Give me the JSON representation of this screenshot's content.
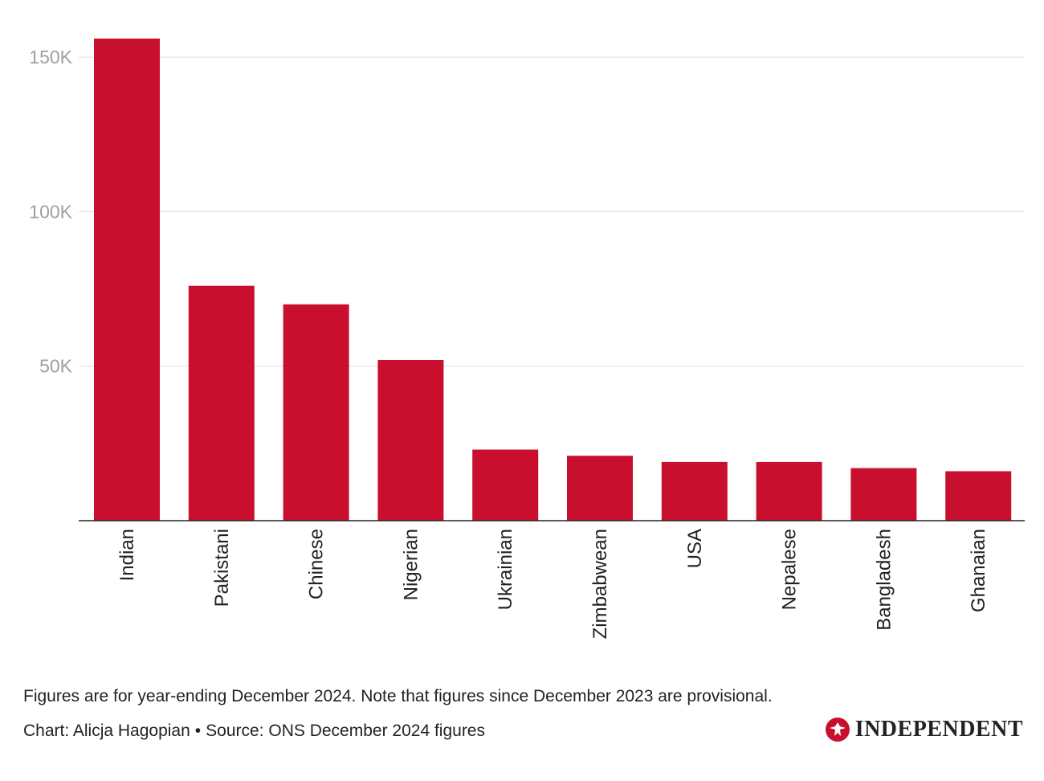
{
  "chart_data": {
    "type": "bar",
    "categories": [
      "Indian",
      "Pakistani",
      "Chinese",
      "Nigerian",
      "Ukrainian",
      "Zimbabwean",
      "USA",
      "Nepalese",
      "Bangladesh",
      "Ghanaian"
    ],
    "values": [
      156000,
      76000,
      70000,
      52000,
      23000,
      21000,
      19000,
      19000,
      17000,
      16000
    ],
    "yticks": [
      50000,
      100000,
      150000
    ],
    "ytick_labels": [
      "50K",
      "100K",
      "150K"
    ],
    "ylim": [
      0,
      156000
    ],
    "grid": true,
    "bar_color": "#c8102e"
  },
  "footer": {
    "note": "Figures are for year-ending December 2024. Note that figures since December 2023 are provisional.",
    "credit": "Chart: Alicja Hagopian",
    "separator": "•",
    "source": "Source: ONS December 2024 figures"
  },
  "logo": {
    "text": "INDEPENDENT",
    "icon": "eagle-icon",
    "icon_color": "#c8102e"
  }
}
